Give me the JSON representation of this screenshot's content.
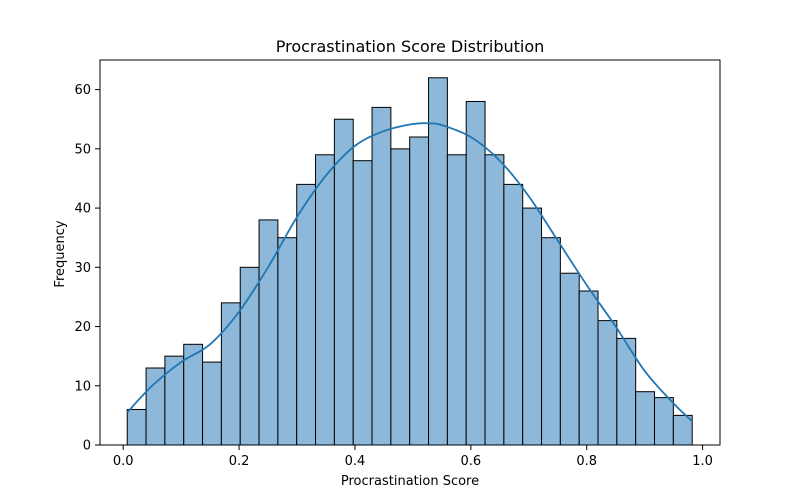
{
  "chart_data": {
    "type": "bar",
    "title": "Procrastination Score Distribution",
    "xlabel": "Procrastination Score",
    "ylabel": "Frequency",
    "xlim": [
      -0.04,
      1.03
    ],
    "ylim": [
      0,
      65
    ],
    "x_ticks": [
      0.0,
      0.2,
      0.4,
      0.6,
      0.8,
      1.0
    ],
    "x_tick_labels": [
      "0.0",
      "0.2",
      "0.4",
      "0.6",
      "0.8",
      "1.0"
    ],
    "y_ticks": [
      0,
      10,
      20,
      30,
      40,
      50,
      60
    ],
    "y_tick_labels": [
      "0",
      "10",
      "20",
      "30",
      "40",
      "50",
      "60"
    ],
    "bin_edges": [
      0.007,
      0.0395,
      0.072,
      0.1045,
      0.137,
      0.1695,
      0.202,
      0.2345,
      0.267,
      0.2995,
      0.332,
      0.3645,
      0.397,
      0.4295,
      0.462,
      0.4945,
      0.527,
      0.5595,
      0.592,
      0.6245,
      0.657,
      0.6895,
      0.722,
      0.7545,
      0.787,
      0.8195,
      0.852,
      0.8845,
      0.917,
      0.9495,
      0.982
    ],
    "values": [
      6,
      13,
      15,
      17,
      14,
      24,
      30,
      38,
      35,
      44,
      49,
      55,
      48,
      57,
      50,
      52,
      62,
      49,
      58,
      49,
      44,
      40,
      35,
      29,
      26,
      21,
      18,
      9,
      8,
      5
    ],
    "kde": {
      "x": [
        0.007,
        0.05,
        0.1,
        0.15,
        0.2,
        0.25,
        0.3,
        0.35,
        0.4,
        0.45,
        0.5,
        0.53,
        0.55,
        0.6,
        0.65,
        0.7,
        0.75,
        0.8,
        0.85,
        0.9,
        0.95,
        0.982
      ],
      "y": [
        5.5,
        10,
        14,
        17,
        22.5,
        30,
        38.5,
        45.5,
        50.5,
        53,
        54.2,
        54.3,
        54,
        52,
        48,
        42,
        34.5,
        27,
        20,
        12.5,
        7,
        4
      ]
    },
    "bar_color": "#8db8d9",
    "line_color": "#1f77b4",
    "grid": false
  }
}
